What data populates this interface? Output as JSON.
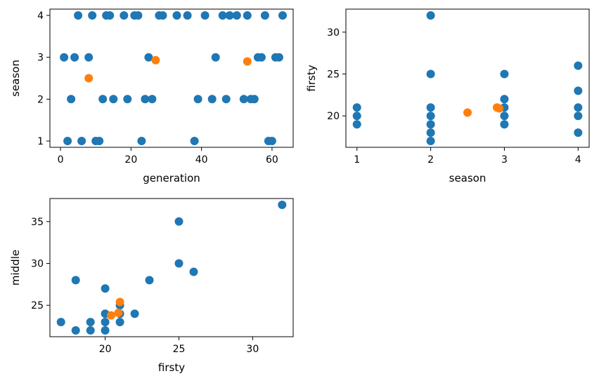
{
  "colors": {
    "main": "#1f77b4",
    "highlight": "#ff7f0e"
  },
  "chart_data": [
    {
      "type": "scatter",
      "title": "",
      "xlabel": "generation",
      "ylabel": "season",
      "xlim": [
        -3,
        66
      ],
      "ylim": [
        0.85,
        4.15
      ],
      "xticks": [
        0,
        20,
        40,
        60
      ],
      "yticks": [
        1,
        2,
        3,
        4
      ],
      "grid": false,
      "series": [
        {
          "color_key": "main",
          "points": [
            [
              1,
              3
            ],
            [
              2,
              1
            ],
            [
              3,
              2
            ],
            [
              4,
              3
            ],
            [
              5,
              4
            ],
            [
              6,
              1
            ],
            [
              8,
              3
            ],
            [
              9,
              4
            ],
            [
              10,
              1
            ],
            [
              11,
              1
            ],
            [
              12,
              2
            ],
            [
              13,
              4
            ],
            [
              14,
              4
            ],
            [
              15,
              2
            ],
            [
              18,
              4
            ],
            [
              19,
              2
            ],
            [
              21,
              4
            ],
            [
              22,
              4
            ],
            [
              23,
              1
            ],
            [
              24,
              2
            ],
            [
              25,
              3
            ],
            [
              26,
              2
            ],
            [
              28,
              4
            ],
            [
              29,
              4
            ],
            [
              33,
              4
            ],
            [
              36,
              4
            ],
            [
              38,
              1
            ],
            [
              39,
              2
            ],
            [
              41,
              4
            ],
            [
              43,
              2
            ],
            [
              44,
              3
            ],
            [
              46,
              4
            ],
            [
              47,
              2
            ],
            [
              48,
              4
            ],
            [
              50,
              4
            ],
            [
              52,
              2
            ],
            [
              53,
              4
            ],
            [
              54,
              2
            ],
            [
              55,
              2
            ],
            [
              56,
              3
            ],
            [
              57,
              3
            ],
            [
              58,
              4
            ],
            [
              59,
              1
            ],
            [
              60,
              1
            ],
            [
              61,
              3
            ],
            [
              62,
              3
            ],
            [
              63,
              4
            ]
          ]
        },
        {
          "color_key": "highlight",
          "points": [
            [
              8,
              2.5
            ],
            [
              27,
              2.93
            ],
            [
              53,
              2.9
            ]
          ]
        }
      ]
    },
    {
      "type": "scatter",
      "title": "",
      "xlabel": "season",
      "ylabel": "firsty",
      "xlim": [
        0.85,
        4.15
      ],
      "ylim": [
        16.25,
        32.75
      ],
      "xticks": [
        1,
        2,
        3,
        4
      ],
      "yticks": [
        20,
        25,
        30
      ],
      "grid": false,
      "series": [
        {
          "color_key": "main",
          "points": [
            [
              1,
              19
            ],
            [
              1,
              20
            ],
            [
              1,
              21
            ],
            [
              2,
              17
            ],
            [
              2,
              18
            ],
            [
              2,
              19
            ],
            [
              2,
              20
            ],
            [
              2,
              21
            ],
            [
              2,
              25
            ],
            [
              2,
              32
            ],
            [
              3,
              19
            ],
            [
              3,
              20
            ],
            [
              3,
              21
            ],
            [
              3,
              22
            ],
            [
              3,
              25
            ],
            [
              4,
              18
            ],
            [
              4,
              20
            ],
            [
              4,
              21
            ],
            [
              4,
              23
            ],
            [
              4,
              26
            ]
          ]
        },
        {
          "color_key": "highlight",
          "points": [
            [
              2.5,
              20.4
            ],
            [
              2.9,
              21
            ],
            [
              2.93,
              20.9
            ]
          ]
        }
      ]
    },
    {
      "type": "scatter",
      "title": "",
      "xlabel": "firsty",
      "ylabel": "middle",
      "xlim": [
        16.25,
        32.75
      ],
      "ylim": [
        21.25,
        37.75
      ],
      "xticks": [
        20,
        25,
        30
      ],
      "yticks": [
        25,
        30,
        35
      ],
      "grid": false,
      "series": [
        {
          "color_key": "main",
          "points": [
            [
              17,
              23
            ],
            [
              18,
              22
            ],
            [
              18,
              28
            ],
            [
              19,
              22
            ],
            [
              19,
              23
            ],
            [
              20,
              22
            ],
            [
              20,
              23
            ],
            [
              20,
              24
            ],
            [
              20,
              27
            ],
            [
              21,
              23
            ],
            [
              21,
              24
            ],
            [
              21,
              25
            ],
            [
              22,
              24
            ],
            [
              23,
              28
            ],
            [
              25,
              30
            ],
            [
              25,
              35
            ],
            [
              26,
              29
            ],
            [
              32,
              37
            ]
          ]
        },
        {
          "color_key": "highlight",
          "points": [
            [
              20.4,
              23.8
            ],
            [
              20.9,
              24.1
            ],
            [
              21,
              25.4
            ]
          ]
        }
      ]
    }
  ]
}
